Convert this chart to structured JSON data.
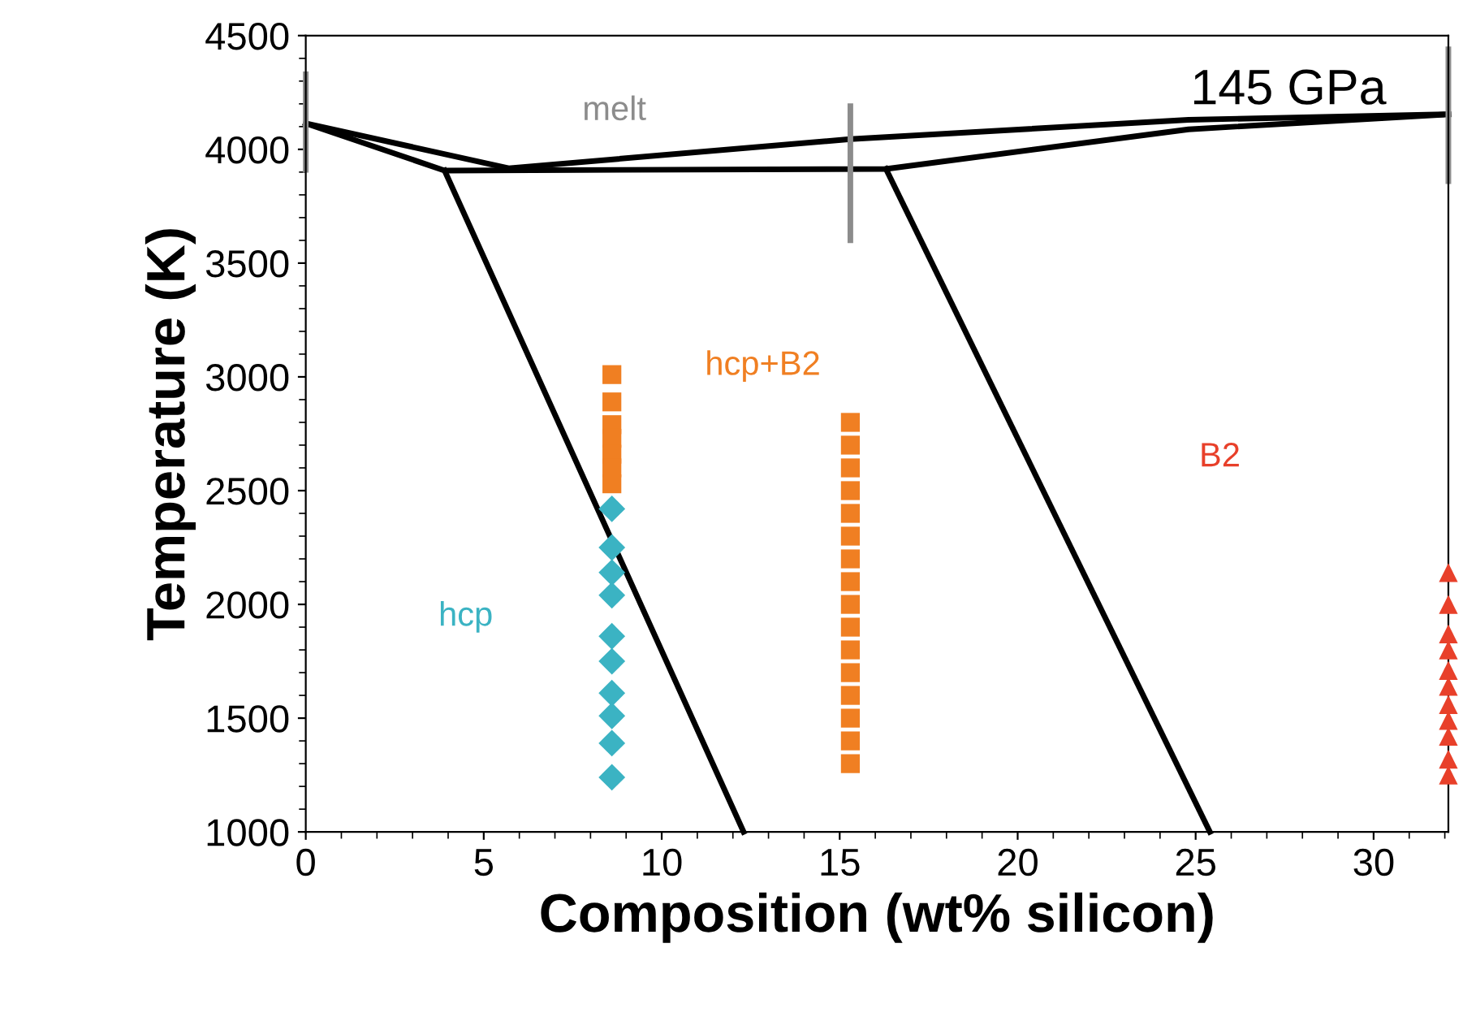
{
  "chart_data": {
    "type": "scatter",
    "xlabel": "Composition (wt% silicon)",
    "ylabel": "Temperature (K)",
    "xlim": [
      0,
      32.1
    ],
    "ylim": [
      1000,
      4500
    ],
    "xticks": [
      0,
      5,
      10,
      15,
      20,
      25,
      30
    ],
    "yticks": [
      1000,
      1500,
      2000,
      2500,
      3000,
      3500,
      4000,
      4500
    ],
    "grid": false,
    "legend": false,
    "series": [
      {
        "type": "line",
        "color": "#000000",
        "marker": "none",
        "x": [
          0,
          5.7,
          15.3,
          24.8,
          32.1
        ],
        "values": [
          4114,
          3917,
          4045,
          4130,
          4154
        ]
      },
      {
        "type": "line",
        "color": "#000000",
        "marker": "none",
        "x": [
          0,
          3.9,
          16.3,
          24.8,
          32.1
        ],
        "values": [
          4114,
          3907,
          3914,
          4088,
          4154
        ]
      },
      {
        "type": "line",
        "color": "#000000",
        "marker": "none",
        "x": [
          3.9,
          12.3
        ],
        "values": [
          3907,
          1000
        ]
      },
      {
        "type": "line",
        "color": "#000000",
        "marker": "none",
        "x": [
          16.3,
          25.4
        ],
        "values": [
          3914,
          1000
        ]
      },
      {
        "type": "line",
        "color": "#8c8c8c",
        "marker": "none",
        "x": [
          0,
          0
        ],
        "values": [
          3910,
          4330
        ]
      },
      {
        "type": "line",
        "color": "#8c8c8c",
        "marker": "none",
        "x": [
          15.3,
          15.3
        ],
        "values": [
          3600,
          4190
        ]
      },
      {
        "type": "line",
        "color": "#8c8c8c",
        "marker": "none",
        "x": [
          32.1,
          32.1
        ],
        "values": [
          3860,
          4440
        ]
      },
      {
        "color": "#3bb3c3",
        "marker": "diamond",
        "x": [
          8.6,
          8.6,
          8.6,
          8.6,
          8.6,
          8.6,
          8.6,
          8.6,
          8.6,
          8.6
        ],
        "values": [
          2420,
          2250,
          2140,
          2040,
          1860,
          1750,
          1610,
          1510,
          1390,
          1240
        ]
      },
      {
        "color": "#f07f22",
        "marker": "square",
        "x": [
          8.6,
          8.6,
          8.6,
          8.6,
          8.6,
          8.6,
          8.6
        ],
        "values": [
          3010,
          2890,
          2790,
          2730,
          2660,
          2600,
          2530
        ]
      },
      {
        "color": "#f07f22",
        "marker": "square",
        "x": [
          15.3,
          15.3,
          15.3,
          15.3,
          15.3,
          15.3,
          15.3,
          15.3,
          15.3,
          15.3,
          15.3,
          15.3,
          15.3,
          15.3,
          15.3,
          15.3
        ],
        "values": [
          2800,
          2700,
          2600,
          2500,
          2400,
          2300,
          2200,
          2100,
          2000,
          1900,
          1800,
          1700,
          1600,
          1500,
          1400,
          1300
        ]
      },
      {
        "color": "#e8402a",
        "marker": "triangle",
        "x": [
          32.1,
          32.1,
          32.1,
          32.1,
          32.1,
          32.1,
          32.1,
          32.1,
          32.1,
          32.1,
          32.1
        ],
        "values": [
          2140,
          2000,
          1870,
          1800,
          1710,
          1640,
          1560,
          1490,
          1420,
          1320,
          1250
        ]
      }
    ],
    "annotations": [
      "melt",
      "145 GPa",
      "hcp+B2",
      "B2",
      "hcp"
    ]
  }
}
